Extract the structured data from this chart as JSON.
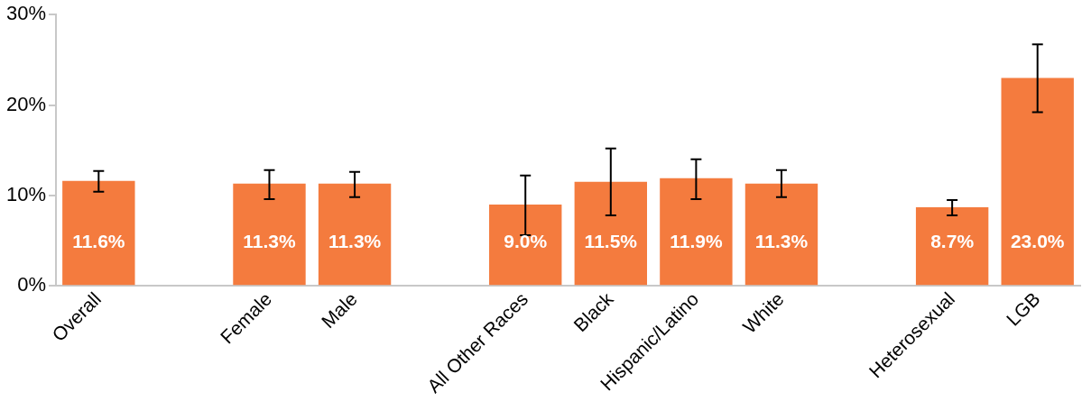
{
  "chart_data": {
    "type": "bar",
    "categories": [
      "Overall",
      null,
      "Female",
      "Male",
      null,
      "All Other Races",
      "Black",
      "Hispanic/Latino",
      "White",
      null,
      "Heterosexual",
      "LGB"
    ],
    "values": [
      11.6,
      null,
      11.3,
      11.3,
      null,
      9.0,
      11.5,
      11.9,
      11.3,
      null,
      8.7,
      23.0
    ],
    "value_labels": [
      "11.6%",
      null,
      "11.3%",
      "11.3%",
      null,
      "9.0%",
      "11.5%",
      "11.9%",
      "11.3%",
      null,
      "8.7%",
      "23.0%"
    ],
    "errors": [
      [
        10.4,
        12.7
      ],
      null,
      [
        9.6,
        12.8
      ],
      [
        9.8,
        12.6
      ],
      null,
      [
        5.6,
        12.2
      ],
      [
        7.8,
        15.2
      ],
      [
        9.6,
        14.0
      ],
      [
        9.8,
        12.8
      ],
      null,
      [
        7.8,
        9.5
      ],
      [
        19.2,
        26.7
      ]
    ],
    "color": "#f47b3e",
    "ylim": [
      0,
      30
    ],
    "yticks": [
      {
        "value": 0,
        "label": "0%"
      },
      {
        "value": 10,
        "label": "10%"
      },
      {
        "value": 20,
        "label": "20%"
      },
      {
        "value": 30,
        "label": "30%"
      }
    ],
    "grid": false,
    "legend": false
  }
}
